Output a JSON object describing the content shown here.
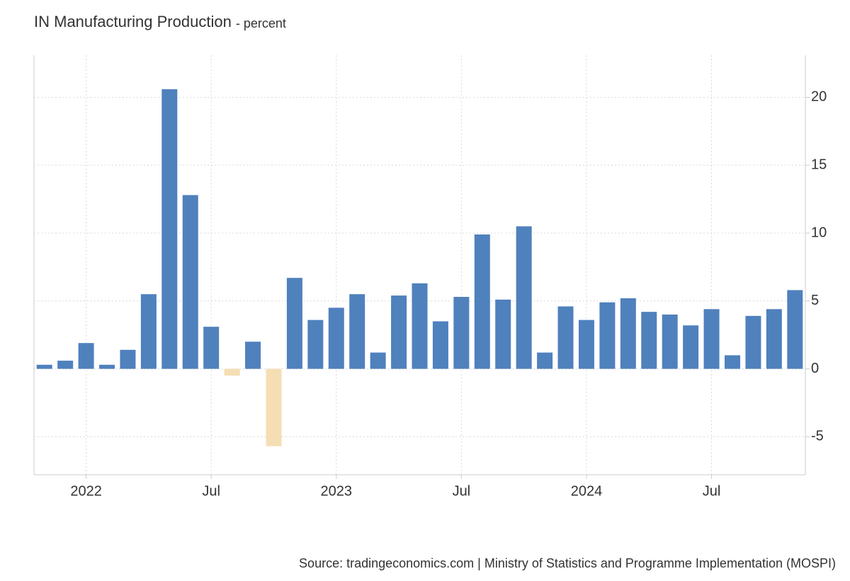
{
  "chart_data": {
    "type": "bar",
    "title": "IN Manufacturing Production",
    "subtitle": "- percent",
    "source": "Source: tradingeconomics.com | Ministry of Statistics and Programme Implementation (MOSPI)",
    "categories": [
      null,
      null,
      "2022",
      null,
      null,
      null,
      null,
      null,
      "Jul",
      null,
      null,
      null,
      null,
      null,
      "2023",
      null,
      null,
      null,
      null,
      null,
      "Jul",
      null,
      null,
      null,
      null,
      null,
      "2024",
      null,
      null,
      null,
      null,
      null,
      "Jul",
      null,
      null,
      null,
      null
    ],
    "values": [
      0.3,
      0.6,
      1.9,
      0.3,
      1.4,
      5.5,
      20.6,
      12.8,
      3.1,
      -0.5,
      2.0,
      -5.7,
      6.7,
      3.6,
      4.5,
      5.5,
      1.2,
      5.4,
      6.3,
      3.5,
      5.3,
      9.9,
      5.1,
      10.5,
      1.2,
      4.6,
      3.6,
      4.9,
      5.2,
      4.2,
      4.0,
      3.2,
      4.4,
      1.0,
      3.9,
      4.4,
      5.8
    ],
    "color": "#4f81bd",
    "negative_color": "#f5deb3",
    "ylim": [
      -7.8,
      23.1
    ],
    "yticks": [
      -5,
      0,
      5,
      10,
      15,
      20
    ],
    "y_axis_side": "right",
    "grid": true
  }
}
